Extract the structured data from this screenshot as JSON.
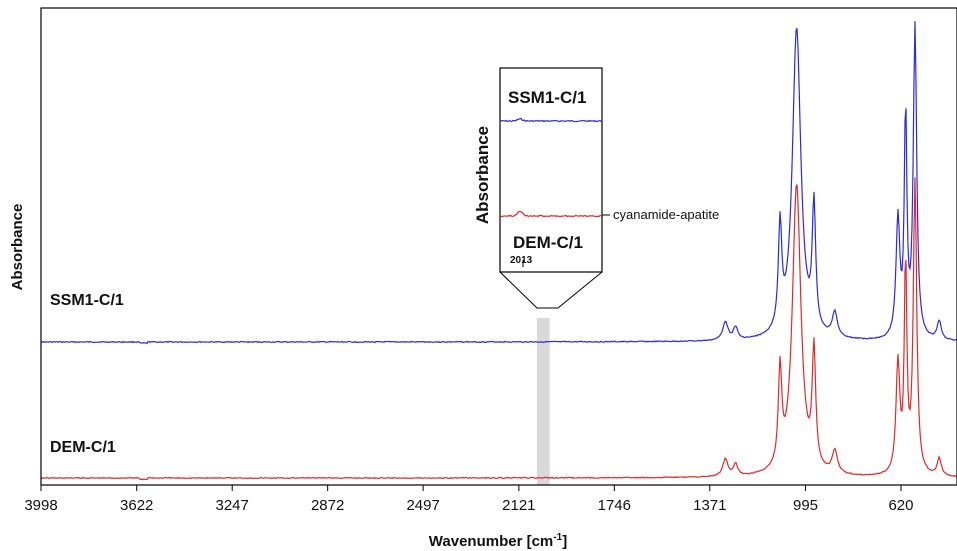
{
  "chart_data": {
    "type": "line",
    "xlabel": "Wavenumber [cm",
    "xlabel_superscript": "-1",
    "xlabel_suffix": "]",
    "ylabel": "Absorbance",
    "x_reversed": true,
    "xlim": [
      3998,
      400
    ],
    "x_ticks": [
      3998,
      3622,
      3247,
      2872,
      2497,
      2121,
      1746,
      1371,
      995,
      620
    ],
    "highlight_band": [
      2050,
      2000
    ],
    "series": [
      {
        "name": "SSM1-C/1",
        "color": "#2a2ae0",
        "peaks": [
          {
            "x": 1310,
            "height": 0.06,
            "width": 12
          },
          {
            "x": 1270,
            "height": 0.04,
            "width": 10
          },
          {
            "x": 1095,
            "height": 0.33,
            "width": 8
          },
          {
            "x": 1030,
            "height": 1.0,
            "width": 20
          },
          {
            "x": 962,
            "height": 0.4,
            "width": 8
          },
          {
            "x": 880,
            "height": 0.08,
            "width": 12
          },
          {
            "x": 632,
            "height": 0.38,
            "width": 9
          },
          {
            "x": 602,
            "height": 0.72,
            "width": 6
          },
          {
            "x": 565,
            "height": 1.0,
            "width": 8
          },
          {
            "x": 470,
            "height": 0.06,
            "width": 10
          }
        ]
      },
      {
        "name": "DEM-C/1",
        "color": "#e02a2a",
        "peaks": [
          {
            "x": 1310,
            "height": 0.06,
            "width": 12
          },
          {
            "x": 1270,
            "height": 0.04,
            "width": 10
          },
          {
            "x": 1095,
            "height": 0.33,
            "width": 8
          },
          {
            "x": 1030,
            "height": 1.0,
            "width": 20
          },
          {
            "x": 962,
            "height": 0.4,
            "width": 8
          },
          {
            "x": 880,
            "height": 0.08,
            "width": 12
          },
          {
            "x": 632,
            "height": 0.38,
            "width": 9
          },
          {
            "x": 602,
            "height": 0.72,
            "width": 6
          },
          {
            "x": 565,
            "height": 1.0,
            "width": 8
          },
          {
            "x": 470,
            "height": 0.06,
            "width": 10
          }
        ]
      }
    ],
    "inset": {
      "ylabel": "Absorbance",
      "x_tick": "2013",
      "series_labels": [
        "SSM1-C/1",
        "DEM-C/1"
      ],
      "annotation": "cyanamide-apatite"
    }
  }
}
